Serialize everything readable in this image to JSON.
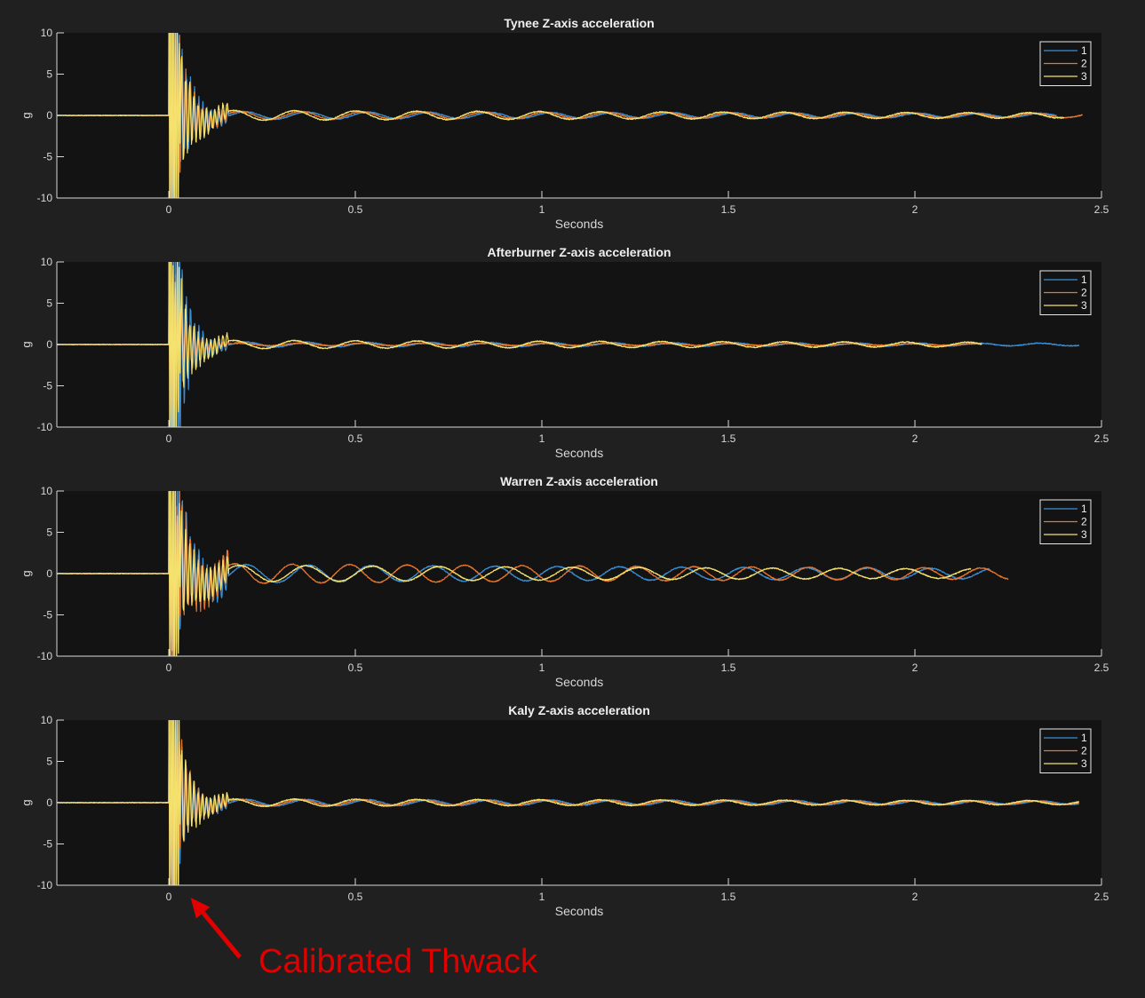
{
  "chart_data": [
    {
      "type": "line",
      "title": "Tynee Z-axis acceleration",
      "xlabel": "Seconds",
      "ylabel": "g",
      "xlim": [
        -0.3,
        2.5
      ],
      "ylim": [
        -10,
        10
      ],
      "xticks": [
        "0",
        "0.5",
        "1",
        "1.5",
        "2",
        "2.5"
      ],
      "yticks": [
        "10",
        "5",
        "0",
        "-5",
        "-10"
      ],
      "grid": false,
      "legend_position": "top-right",
      "series": [
        {
          "name": "1",
          "color": "#3b8fd6",
          "end_time": 2.38,
          "impact_amplitude": 25,
          "oscillation_amplitude": 0.45,
          "frequency_hz": 6.1
        },
        {
          "name": "2",
          "color": "#e8762d",
          "end_time": 2.45,
          "impact_amplitude": 20,
          "oscillation_amplitude": 0.5,
          "frequency_hz": 6.1
        },
        {
          "name": "3",
          "color": "#f5e26e",
          "end_time": 2.4,
          "impact_amplitude": 22,
          "oscillation_amplitude": 0.6,
          "frequency_hz": 6.1
        }
      ]
    },
    {
      "type": "line",
      "title": "Afterburner Z-axis acceleration",
      "xlabel": "Seconds",
      "ylabel": "g",
      "xlim": [
        -0.3,
        2.5
      ],
      "ylim": [
        -10,
        10
      ],
      "xticks": [
        "0",
        "0.5",
        "1",
        "1.5",
        "2",
        "2.5"
      ],
      "yticks": [
        "10",
        "5",
        "0",
        "-5",
        "-10"
      ],
      "grid": false,
      "legend_position": "top-right",
      "series": [
        {
          "name": "1",
          "color": "#3b8fd6",
          "end_time": 2.44,
          "impact_amplitude": 30,
          "oscillation_amplitude": 0.3,
          "frequency_hz": 6.1
        },
        {
          "name": "2",
          "color": "#e8762d",
          "end_time": 2.18,
          "impact_amplitude": 12,
          "oscillation_amplitude": 0.15,
          "frequency_hz": 6.1
        },
        {
          "name": "3",
          "color": "#f5e26e",
          "end_time": 2.18,
          "impact_amplitude": 20,
          "oscillation_amplitude": 0.5,
          "frequency_hz": 6.1
        }
      ]
    },
    {
      "type": "line",
      "title": "Warren Z-axis acceleration",
      "xlabel": "Seconds",
      "ylabel": "g",
      "xlim": [
        -0.3,
        2.5
      ],
      "ylim": [
        -10,
        10
      ],
      "xticks": [
        "0",
        "0.5",
        "1",
        "1.5",
        "2",
        "2.5"
      ],
      "yticks": [
        "10",
        "5",
        "0",
        "-5",
        "-10"
      ],
      "grid": false,
      "legend_position": "top-right",
      "series": [
        {
          "name": "1",
          "color": "#3b8fd6",
          "end_time": 2.2,
          "impact_amplitude": 20,
          "oscillation_amplitude": 1.1,
          "frequency_hz": 6.0
        },
        {
          "name": "2",
          "color": "#e8762d",
          "end_time": 2.25,
          "impact_amplitude": 22,
          "oscillation_amplitude": 1.2,
          "frequency_hz": 6.5
        },
        {
          "name": "3",
          "color": "#f5e26e",
          "end_time": 2.15,
          "impact_amplitude": 20,
          "oscillation_amplitude": 1.0,
          "frequency_hz": 5.6
        }
      ]
    },
    {
      "type": "line",
      "title": "Kaly Z-axis acceleration",
      "xlabel": "Seconds",
      "ylabel": "g",
      "xlim": [
        -0.3,
        2.5
      ],
      "ylim": [
        -10,
        10
      ],
      "xticks": [
        "0",
        "0.5",
        "1",
        "1.5",
        "2",
        "2.5"
      ],
      "yticks": [
        "10",
        "5",
        "0",
        "-5",
        "-10"
      ],
      "grid": false,
      "legend_position": "top-right",
      "series": [
        {
          "name": "1",
          "color": "#3b8fd6",
          "end_time": 2.44,
          "impact_amplitude": 20,
          "oscillation_amplitude": 0.4,
          "frequency_hz": 6.1
        },
        {
          "name": "2",
          "color": "#e8762d",
          "end_time": 2.44,
          "impact_amplitude": 20,
          "oscillation_amplitude": 0.4,
          "frequency_hz": 6.1
        },
        {
          "name": "3",
          "color": "#f5e26e",
          "end_time": 2.44,
          "impact_amplitude": 22,
          "oscillation_amplitude": 0.45,
          "frequency_hz": 6.1
        }
      ]
    }
  ],
  "annotation": {
    "text": "Calibrated Thwack",
    "color": "#e00000",
    "points_to_time": 0.03
  },
  "colors": {
    "figure_background": "#202020",
    "axes_background": "#131313",
    "axis_color": "#d8d8d8"
  }
}
